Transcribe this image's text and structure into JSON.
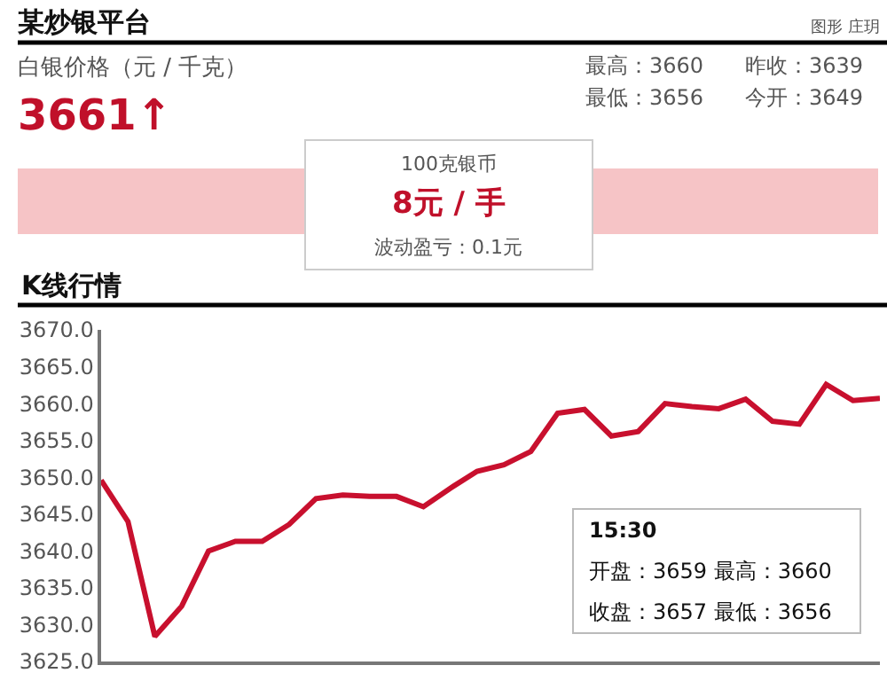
{
  "chart_data": {
    "type": "line",
    "title": "某炒银平台",
    "subtitle": "K线行情",
    "annotations": [
      "图形 庄玥",
      "白银价格（元 / 千克）",
      "3661↑",
      "最高：3660",
      "昨收：3639",
      "最低：3656",
      "今开：3649",
      "100克银币",
      "8元 / 手",
      "波动盈亏：0.1元",
      "15:30",
      "开盘：3659 最高：3660",
      "收盘：3657 最低：3656"
    ],
    "categories": [
      null,
      null,
      null,
      null,
      null,
      null,
      null,
      null,
      null,
      null,
      null,
      null,
      null,
      null,
      null,
      null,
      null,
      null,
      null,
      null,
      null,
      null,
      null,
      null,
      null,
      null,
      null,
      null,
      null,
      null
    ],
    "series": [
      {
        "color": "#c8102e",
        "values": [
          3649.6,
          3644,
          3628.4,
          3632.5,
          3640,
          3641.3,
          3641.3,
          3643.6,
          3647.1,
          3647.6,
          3647.4,
          3647.4,
          3646,
          3648.5,
          3650.8,
          3651.7,
          3653.5,
          3658.7,
          3659.2,
          3655.6,
          3656.2,
          3660,
          3659.6,
          3659.3,
          3660.6,
          3657.6,
          3657.2,
          3662.6,
          3660.4,
          3660.7
        ]
      }
    ],
    "ylim": [
      3625,
      3670
    ],
    "yticks": [
      {
        "value": 3625,
        "label": "3625.0"
      },
      {
        "value": 3630,
        "label": "3630.0"
      },
      {
        "value": 3635,
        "label": "3635.0"
      },
      {
        "value": 3640,
        "label": "3640.0"
      },
      {
        "value": 3645,
        "label": "3645.0"
      },
      {
        "value": 3650,
        "label": "3650.0"
      },
      {
        "value": 3655,
        "label": "3655.0"
      },
      {
        "value": 3660,
        "label": "3660.0"
      },
      {
        "value": 3665,
        "label": "3665.0"
      },
      {
        "value": 3670,
        "label": "3670.0"
      }
    ],
    "tick_labels": "y"
  }
}
